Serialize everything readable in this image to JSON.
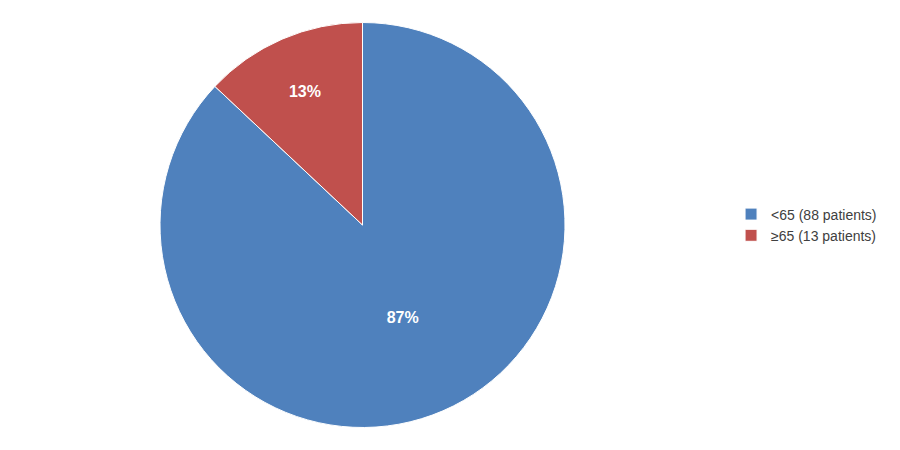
{
  "chart_data": {
    "type": "pie",
    "categories": [
      "<65 (88 patients)",
      "≥65 (13 patients)"
    ],
    "values": [
      87,
      13
    ],
    "value_labels": [
      "87%",
      "13%"
    ],
    "colors": [
      "#4f81bd",
      "#c0504d"
    ],
    "data_labels": true,
    "legend": "right"
  }
}
